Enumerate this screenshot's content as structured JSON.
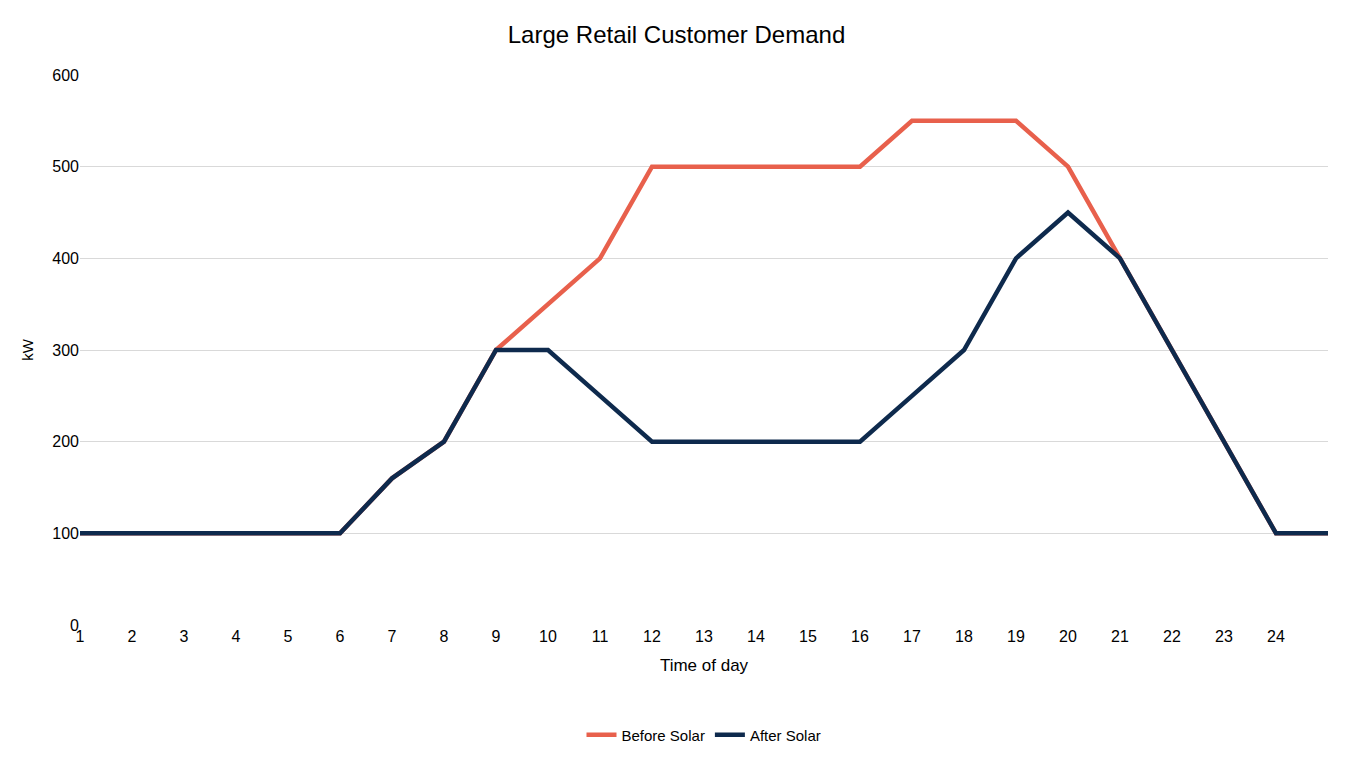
{
  "chart_data": {
    "type": "line",
    "title": "Large Retail Customer Demand",
    "x_label": "Time of day",
    "y_label": "kW",
    "categories": [
      "1",
      "2",
      "3",
      "4",
      "5",
      "6",
      "7",
      "8",
      "9",
      "10",
      "11",
      "12",
      "13",
      "14",
      "15",
      "16",
      "17",
      "18",
      "19",
      "20",
      "21",
      "22",
      "23",
      "24",
      null
    ],
    "series": [
      {
        "name": "Before Solar",
        "color": "#e8604c",
        "values": [
          100,
          100,
          100,
          100,
          100,
          100,
          160,
          200,
          300,
          350,
          400,
          500,
          500,
          500,
          500,
          500,
          550,
          550,
          550,
          500,
          400,
          300,
          200,
          100,
          100
        ]
      },
      {
        "name": "After Solar",
        "color": "#0e2a4d",
        "values": [
          100,
          100,
          100,
          100,
          100,
          100,
          160,
          200,
          300,
          300,
          250,
          200,
          200,
          200,
          200,
          200,
          250,
          300,
          400,
          450,
          400,
          300,
          200,
          100,
          100
        ]
      }
    ],
    "ylim": [
      0,
      600
    ],
    "yticks": [
      0,
      100,
      200,
      300,
      400,
      500,
      600
    ],
    "grid": true,
    "legend": "bottom"
  }
}
